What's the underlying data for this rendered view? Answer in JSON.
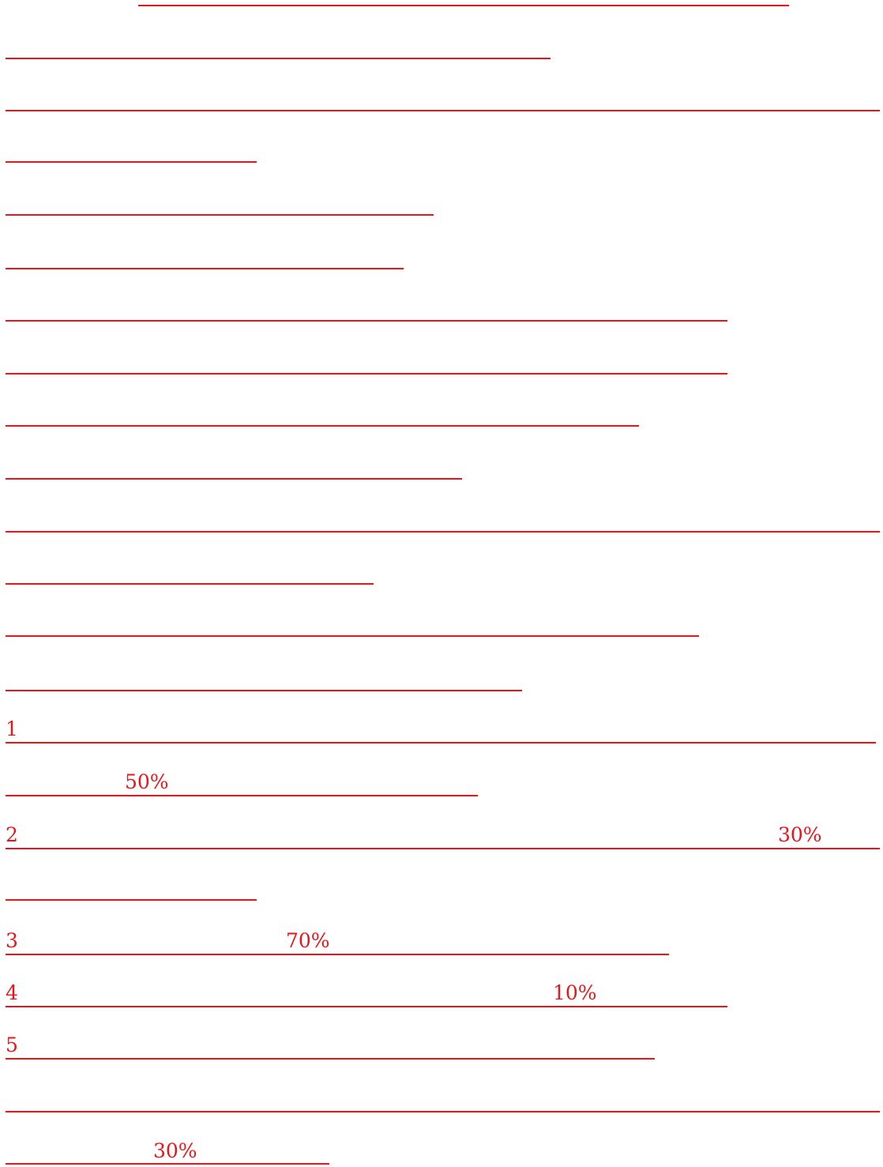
{
  "document": {
    "accent_color": "#e8161b",
    "lines": [
      {
        "id": "line-01",
        "text": ""
      },
      {
        "id": "line-02",
        "text": ""
      },
      {
        "id": "line-03",
        "text": ""
      },
      {
        "id": "line-04",
        "text": ""
      },
      {
        "id": "line-05",
        "text": ""
      },
      {
        "id": "line-06",
        "text": ""
      },
      {
        "id": "line-07",
        "text": ""
      },
      {
        "id": "line-08",
        "text": ""
      },
      {
        "id": "line-09",
        "text": ""
      },
      {
        "id": "line-10",
        "text": ""
      },
      {
        "id": "line-11",
        "text": ""
      },
      {
        "id": "line-12",
        "text": ""
      },
      {
        "id": "line-13",
        "text": ""
      },
      {
        "id": "line-14",
        "text": ""
      },
      {
        "id": "line-15",
        "texts": [
          "1"
        ]
      },
      {
        "id": "line-16",
        "texts": [
          "50%"
        ]
      },
      {
        "id": "line-17",
        "texts": [
          "2",
          "30%"
        ]
      },
      {
        "id": "line-18",
        "text": ""
      },
      {
        "id": "line-19",
        "texts": [
          "3",
          "70%"
        ]
      },
      {
        "id": "line-20",
        "texts": [
          "4",
          "10%"
        ]
      },
      {
        "id": "line-21",
        "texts": [
          "5"
        ]
      },
      {
        "id": "line-22",
        "text": ""
      },
      {
        "id": "line-23",
        "texts": [
          "30%"
        ]
      }
    ]
  }
}
